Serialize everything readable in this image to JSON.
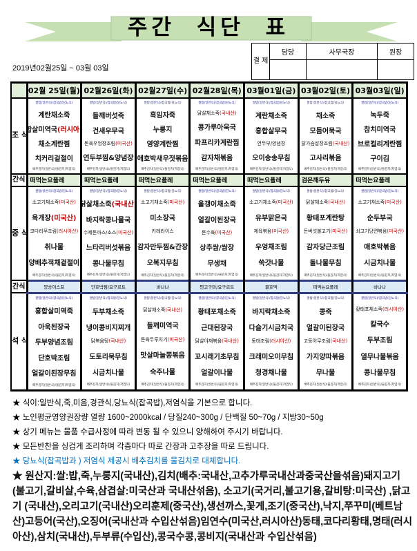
{
  "header": {
    "title": "주간  식단 표",
    "period": "2019년02월25일 ~ 03월 03일"
  },
  "approval": {
    "label": "결 제",
    "columns": [
      "담당",
      "사무국장",
      "원장"
    ]
  },
  "meal_labels": {
    "breakfast": "조 식",
    "snack": "간식",
    "lunch": "중 식",
    "snack2": "간식",
    "dinner": "석 식"
  },
  "rice_note": "쌀밥(일반식)/잡곡밥(당뇨식)",
  "kimchi_note": "배추김치(일반식)/물김치(저염식)",
  "colors": {
    "header_bg": "#e2efda",
    "snack2_bg": "#ddebf7",
    "origin": "#c00000",
    "banner": "#c6e0b4",
    "blue_note": "#0070c0"
  },
  "days": [
    {
      "date": "02월 25일(월)",
      "breakfast": [
        {
          "t": "계란채소죽"
        },
        {
          "t": "홍합살미역국",
          "o": "(러시아산)"
        },
        {
          "t": "채소계란찜"
        },
        {
          "t": "치커리겉절이"
        }
      ],
      "snack1": "떠먹는요플레",
      "lunch": [
        {
          "t": "소고기채소죽",
          "o": "(미국산)",
          "s": 1
        },
        {
          "t": "육개장",
          "o": "(미국산)"
        },
        {
          "t": "코다리무조림",
          "o": "(러시아산)",
          "s": 1
        },
        {
          "t": "취나물"
        },
        {
          "t": "양배추적채겉절이"
        }
      ],
      "snack2": "양송이스프",
      "dinner": [
        {
          "t": "홍합살미역죽"
        },
        {
          "t": "아욱된장국"
        },
        {
          "t": "두부양념조림"
        },
        {
          "t": "단호박조림"
        },
        {
          "t": "얼갈이된장무침"
        }
      ]
    },
    {
      "date": "02월26일(화)",
      "breakfast": [
        {
          "t": "들깨버섯죽"
        },
        {
          "t": "건새우무국"
        },
        {
          "t": "돈육우엉장조림",
          "o": "(미국산)",
          "s": 1
        },
        {
          "t": "연두부찜&양념장"
        }
      ],
      "snack1": "떠먹는요플레",
      "lunch": [
        {
          "t": "닭살채소죽",
          "o": "(국내산)"
        },
        {
          "t": "바지락콩나물국"
        },
        {
          "t": "수제돈까스/소스",
          "o": "(미국산)",
          "s": 1
        },
        {
          "t": "느타리버섯볶음"
        },
        {
          "t": "콩나물무침"
        }
      ],
      "snack2": "단호박찜/요구르트",
      "dinner": [
        {
          "t": "두부채소죽"
        },
        {
          "t": "냉이콩비지찌개"
        },
        {
          "t": "닭볶음탕",
          "o": "(국내산)",
          "s": 1
        },
        {
          "t": "도토리묵무침"
        },
        {
          "t": "시금치나물"
        }
      ]
    },
    {
      "date": "02월27일(수)",
      "breakfast": [
        {
          "t": "흑임자죽"
        },
        {
          "t": "누룽지"
        },
        {
          "t": "영양계란찜"
        },
        {
          "t": "애호박새우젓볶음"
        }
      ],
      "snack1": "떠먹는요플레",
      "lunch": [
        {
          "t": "소고기채소죽",
          "o": "(미국산)",
          "s": 1
        },
        {
          "t": "미소장국"
        },
        {
          "t": "카레라이스",
          "s": 1
        },
        {
          "t": "감자만두찜&간장"
        },
        {
          "t": "오복지무침"
        }
      ],
      "snack2": "바나나",
      "dinner": [
        {
          "t": "닭살채소죽",
          "o": "(국내산)",
          "s": 1
        },
        {
          "t": "들깨미역국"
        },
        {
          "t": "돈육두루치기",
          "o": "(미국산)",
          "s": 1
        },
        {
          "t": "맛살마늘쫑볶음"
        },
        {
          "t": "숙주나물"
        }
      ]
    },
    {
      "date": "02월28일(목)",
      "breakfast": [
        {
          "t": "닭살채소죽",
          "o": "(국내산)",
          "s": 1
        },
        {
          "t": "콩가루아욱국"
        },
        {
          "t": "파프리카계란찜"
        },
        {
          "t": "감자채볶음"
        }
      ],
      "snack1": "떠먹는요플레",
      "lunch": [
        {
          "t": "올갱이채소죽"
        },
        {
          "t": "얼갈이된장국"
        },
        {
          "t": "돈수육",
          "o": "(미국산)",
          "s": 1
        },
        {
          "t": "상추쌈/쌈장"
        },
        {
          "t": "무생채"
        }
      ],
      "snack2": "찐고구마/요구르트",
      "dinner": [
        {
          "t": "황태포채소죽"
        },
        {
          "t": "근대된장국"
        },
        {
          "t": "닭살야채볶음",
          "o": "(국내산)",
          "s": 1
        },
        {
          "t": "꼬시래기초무침"
        },
        {
          "t": "얼갈이나물"
        }
      ]
    },
    {
      "date": "03월01일(금)",
      "breakfast": [
        {
          "t": "계란채소죽"
        },
        {
          "t": "홍합살무국"
        },
        {
          "t": "연두부/양념장",
          "s": 1
        },
        {
          "t": "오이송송무침"
        }
      ],
      "snack1": "떠먹는요플레",
      "lunch": [
        {
          "t": "소고기채소죽",
          "o": "(미국산)",
          "s": 1
        },
        {
          "t": "유부맑은국"
        },
        {
          "t": "제육볶음",
          "o": "(미국산)",
          "s": 1
        },
        {
          "t": "우엉채조림"
        },
        {
          "t": "쑥갓나물"
        }
      ],
      "snack2": "꿀호떡",
      "dinner": [
        {
          "t": "바지락채소죽"
        },
        {
          "t": "다슬기시금치국"
        },
        {
          "t": "동태조림",
          "o": "(러시아산)",
          "s": 1
        },
        {
          "t": "크래미오이무침"
        },
        {
          "t": "청경채나물"
        }
      ]
    },
    {
      "date": "03월02일(토)",
      "breakfast": [
        {
          "t": "채소죽"
        },
        {
          "t": "모듬어묵국"
        },
        {
          "t": "닭가슴살장조림",
          "o": "(국내산)",
          "s": 1
        },
        {
          "t": "고사리볶음"
        }
      ],
      "snack1": "검은깨두유",
      "lunch": [
        {
          "t": "닭살채소죽",
          "o": "(국내산)",
          "s": 1
        },
        {
          "t": "황태포계란탕"
        },
        {
          "t": "돈버섯불고기",
          "o": "(미국산)",
          "s": 1
        },
        {
          "t": "감자당근조림"
        },
        {
          "t": "돌나물무침"
        }
      ],
      "snack2": "떠먹는요플레",
      "dinner": [
        {
          "t": "콩죽"
        },
        {
          "t": "얼갈이된장국"
        },
        {
          "t": "고등어무조림",
          "o": "(국내산)",
          "s": 1
        },
        {
          "t": "가지양파볶음"
        },
        {
          "t": "무나물"
        }
      ]
    },
    {
      "date": "03월03일(일)",
      "breakfast": [
        {
          "t": "녹두죽"
        },
        {
          "t": "참치미역국"
        },
        {
          "t": "브로컬리계란찜"
        },
        {
          "t": "구이김"
        }
      ],
      "snack1": "떠먹는요플레",
      "lunch": [
        {
          "t": "소고기채소죽",
          "o": "(미국산)",
          "s": 1
        },
        {
          "t": "순두부국"
        },
        {
          "t": "쇠고기당면볶음",
          "o": "(미국산)",
          "s": 1
        },
        {
          "t": "애호박볶음"
        },
        {
          "t": "시금치나물"
        }
      ],
      "snack2": "바나나",
      "dinner": [
        {
          "t": "황태포채소죽",
          "o": "(러시아산)",
          "s": 1
        },
        {
          "t": "칼국수"
        },
        {
          "t": "두부조림"
        },
        {
          "t": "열무나물볶음"
        },
        {
          "t": "콩나물무침"
        }
      ]
    }
  ],
  "notes": [
    "★ 식이:일반식,죽,미음,경관식,당뇨식(잡곡밥),저염식을 기본으로 합니다.",
    "★ 노인평균영양권장량 열량 1600~2000kcal / 당질240~300g / 단백질 50~70g / 지방30~50g",
    "★ 상기 메뉴는 물품 수급사정에 따라 변동 될 수 있으니 양해하여 주시기 바랍니다.",
    "★ 모든반찬을 싱겁게 조리하며 각층마다 따로 간장과 고추장을 따로 드립니다.",
    "★ 당뇨식(잡곡밥과 ) 저염식 제공시 배추김치를 물김치로 대체합니다.",
    "★ 원산지:쌀:밥,죽,누룽지(국내산),김치(배추:국내산,고추가루국내산과중국산을섞음)돼지고기(불고기,갈비살,수육,삼겹살:미국산과 국내산섞음), 소고기(국거리,불고기용,갈비탕:미국산) ,닭고기 (국내산),오리고기(국내산)오리훈제(중국산),생선까스,꽃게,조기(중국산),낙지,쭈꾸미(베트남산)고등어(국산),오징어(국내산과 수입산섞음)임연수(미국산,러시아산)동태,코다리황태,명태(러시아산),삼치(국내산),두부류(수입산),콩국수콩,콩비지(국내산과 수입산섞음)"
  ]
}
